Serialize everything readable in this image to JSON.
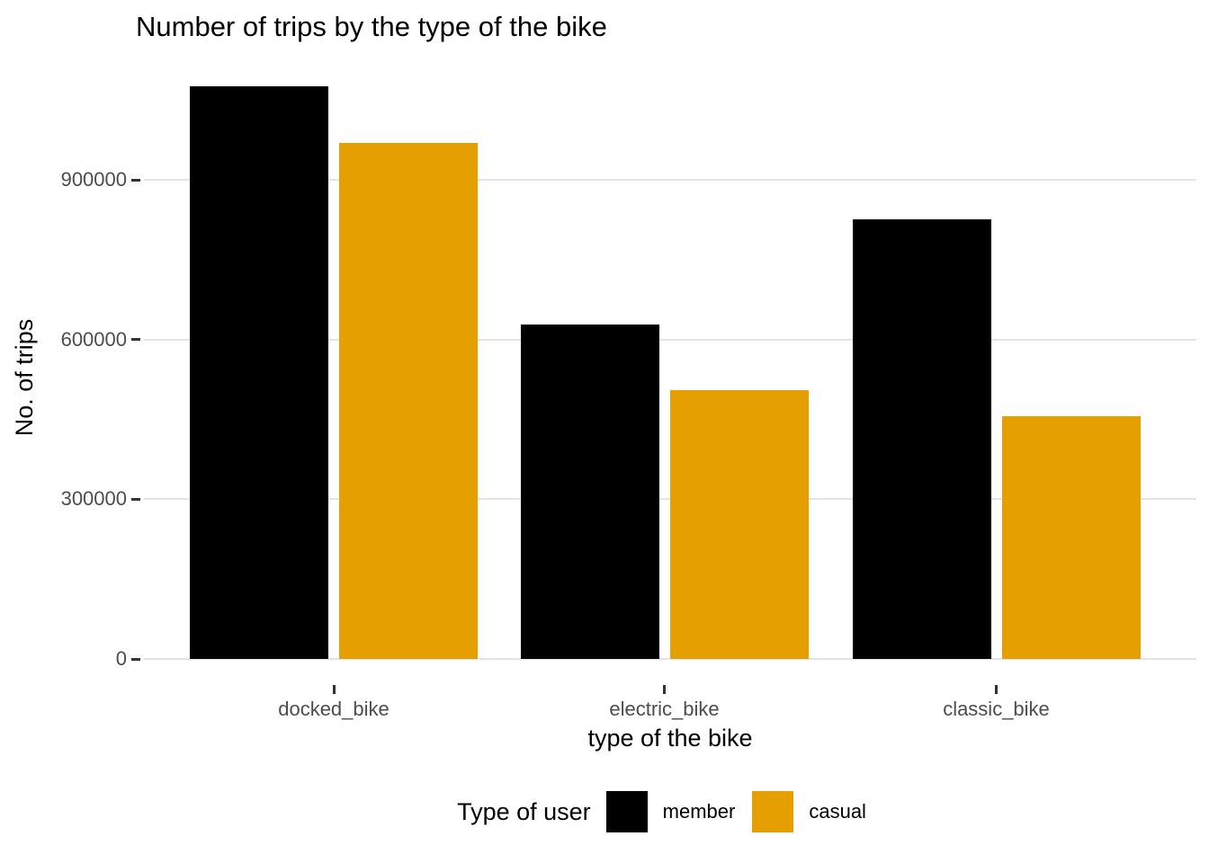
{
  "title": "Number of trips by the type of the bike",
  "chart_data": {
    "type": "bar",
    "title": "Number of trips by the type of the bike",
    "xlabel": "type of the bike",
    "ylabel": "No. of trips",
    "categories": [
      "docked_bike",
      "electric_bike",
      "classic_bike"
    ],
    "series": [
      {
        "name": "member",
        "color": "#000000",
        "values": [
          1077000,
          628000,
          827000
        ]
      },
      {
        "name": "casual",
        "color": "#e69f00",
        "values": [
          970000,
          506000,
          456000
        ]
      }
    ],
    "ylim": [
      0,
      1134000
    ],
    "yticks": [
      0,
      300000,
      600000,
      900000
    ],
    "ytick_labels": [
      "0",
      "300000",
      "600000",
      "900000"
    ],
    "grid": "major-y-only",
    "legend_title": "Type of user",
    "legend_position": "bottom-center",
    "colors": {
      "gridline": "#e4e4e4",
      "tick_mark": "#333333",
      "tick_label": "#4d4d4d",
      "background": "#ffffff"
    }
  }
}
